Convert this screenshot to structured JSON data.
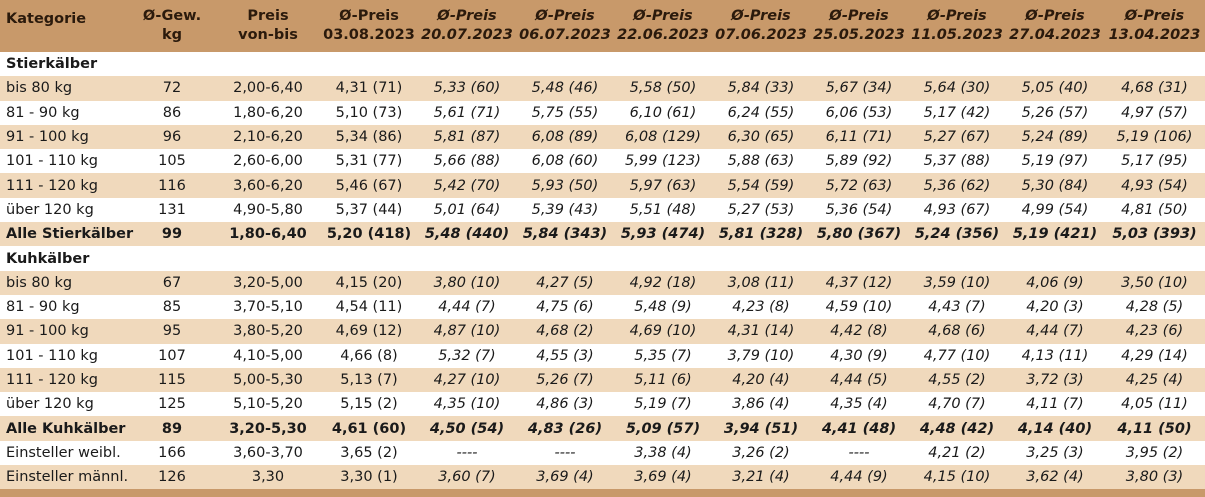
{
  "header": {
    "kategorie": "Kategorie",
    "gew": [
      "Ø-Gew.",
      "kg"
    ],
    "preis": [
      "Preis",
      "von-bis"
    ],
    "cols": [
      {
        "l1": "Ø-Preis",
        "l2": "03.08.2023"
      },
      {
        "l1": "Ø-Preis",
        "l2": "20.07.2023"
      },
      {
        "l1": "Ø-Preis",
        "l2": "06.07.2023"
      },
      {
        "l1": "Ø-Preis",
        "l2": "22.06.2023"
      },
      {
        "l1": "Ø-Preis",
        "l2": "07.06.2023"
      },
      {
        "l1": "Ø-Preis",
        "l2": "25.05.2023"
      },
      {
        "l1": "Ø-Preis",
        "l2": "11.05.2023"
      },
      {
        "l1": "Ø-Preis",
        "l2": "27.04.2023"
      },
      {
        "l1": "Ø-Preis",
        "l2": "13.04.2023"
      }
    ]
  },
  "sections": [
    {
      "title": "Stierkälber",
      "rows": [
        [
          "bis 80 kg",
          "72",
          "2,00-6,40",
          "4,31 (71)",
          "5,33 (60)",
          "5,48 (46)",
          "5,58 (50)",
          "5,84 (33)",
          "5,67 (34)",
          "5,64 (30)",
          "5,05 (40)",
          "4,68 (31)"
        ],
        [
          "81 - 90 kg",
          "86",
          "1,80-6,20",
          "5,10 (73)",
          "5,61 (71)",
          "5,75 (55)",
          "6,10 (61)",
          "6,24 (55)",
          "6,06 (53)",
          "5,17 (42)",
          "5,26 (57)",
          "4,97 (57)"
        ],
        [
          "91 - 100 kg",
          "96",
          "2,10-6,20",
          "5,34 (86)",
          "5,81 (87)",
          "6,08 (89)",
          "6,08 (129)",
          "6,30 (65)",
          "6,11 (71)",
          "5,27 (67)",
          "5,24 (89)",
          "5,19 (106)"
        ],
        [
          "101 - 110 kg",
          "105",
          "2,60-6,00",
          "5,31 (77)",
          "5,66 (88)",
          "6,08 (60)",
          "5,99 (123)",
          "5,88 (63)",
          "5,89 (92)",
          "5,37 (88)",
          "5,19 (97)",
          "5,17 (95)"
        ],
        [
          "111 - 120 kg",
          "116",
          "3,60-6,20",
          "5,46 (67)",
          "5,42 (70)",
          "5,93 (50)",
          "5,97 (63)",
          "5,54 (59)",
          "5,72 (63)",
          "5,36 (62)",
          "5,30 (84)",
          "4,93 (54)"
        ],
        [
          "über 120 kg",
          "131",
          "4,90-5,80",
          "5,37 (44)",
          "5,01 (64)",
          "5,39 (43)",
          "5,51 (48)",
          "5,27 (53)",
          "5,36 (54)",
          "4,93 (67)",
          "4,99 (54)",
          "4,81 (50)"
        ]
      ],
      "total": [
        "Alle Stierkälber",
        "99",
        "1,80-6,40",
        "5,20 (418)",
        "5,48 (440)",
        "5,84 (343)",
        "5,93 (474)",
        "5,81 (328)",
        "5,80 (367)",
        "5,24 (356)",
        "5,19 (421)",
        "5,03 (393)"
      ]
    },
    {
      "title": "Kuhkälber",
      "rows": [
        [
          "bis 80 kg",
          "67",
          "3,20-5,00",
          "4,15 (20)",
          "3,80 (10)",
          "4,27 (5)",
          "4,92 (18)",
          "3,08 (11)",
          "4,37 (12)",
          "3,59 (10)",
          "4,06 (9)",
          "3,50 (10)"
        ],
        [
          "81 - 90 kg",
          "85",
          "3,70-5,10",
          "4,54 (11)",
          "4,44 (7)",
          "4,75 (6)",
          "5,48 (9)",
          "4,23 (8)",
          "4,59 (10)",
          "4,43 (7)",
          "4,20 (3)",
          "4,28 (5)"
        ],
        [
          "91 - 100 kg",
          "95",
          "3,80-5,20",
          "4,69 (12)",
          "4,87 (10)",
          "4,68 (2)",
          "4,69 (10)",
          "4,31 (14)",
          "4,42 (8)",
          "4,68 (6)",
          "4,44 (7)",
          "4,23 (6)"
        ],
        [
          "101 - 110 kg",
          "107",
          "4,10-5,00",
          "4,66 (8)",
          "5,32 (7)",
          "4,55 (3)",
          "5,35 (7)",
          "3,79 (10)",
          "4,30 (9)",
          "4,77 (10)",
          "4,13 (11)",
          "4,29 (14)"
        ],
        [
          "111 - 120 kg",
          "115",
          "5,00-5,30",
          "5,13 (7)",
          "4,27 (10)",
          "5,26 (7)",
          "5,11 (6)",
          "4,20 (4)",
          "4,44 (5)",
          "4,55 (2)",
          "3,72 (3)",
          "4,25 (4)"
        ],
        [
          "über 120 kg",
          "125",
          "5,10-5,20",
          "5,15 (2)",
          "4,35 (10)",
          "4,86 (3)",
          "5,19 (7)",
          "3,86 (4)",
          "4,35 (4)",
          "4,70 (7)",
          "4,11 (7)",
          "4,05 (11)"
        ]
      ],
      "total": [
        "Alle Kuhkälber",
        "89",
        "3,20-5,30",
        "4,61 (60)",
        "4,50 (54)",
        "4,83 (26)",
        "5,09 (57)",
        "3,94 (51)",
        "4,41 (48)",
        "4,48 (42)",
        "4,14 (40)",
        "4,11 (50)"
      ]
    }
  ],
  "extra_rows": [
    [
      "Einsteller weibl.",
      "166",
      "3,60-3,70",
      "3,65 (2)",
      "----",
      "----",
      "3,38 (4)",
      "3,26 (2)",
      "----",
      "4,21 (2)",
      "3,25 (3)",
      "3,95 (2)"
    ],
    [
      "Einsteller männl.",
      "126",
      "3,30",
      "3,30 (1)",
      "3,60 (7)",
      "3,69 (4)",
      "3,69 (4)",
      "3,21 (4)",
      "4,44 (9)",
      "4,15 (10)",
      "3,62 (4)",
      "3,80 (3)"
    ]
  ],
  "colors": {
    "header_bg": "#c8996a",
    "stripe": "#f0d9bc",
    "white": "#ffffff"
  }
}
